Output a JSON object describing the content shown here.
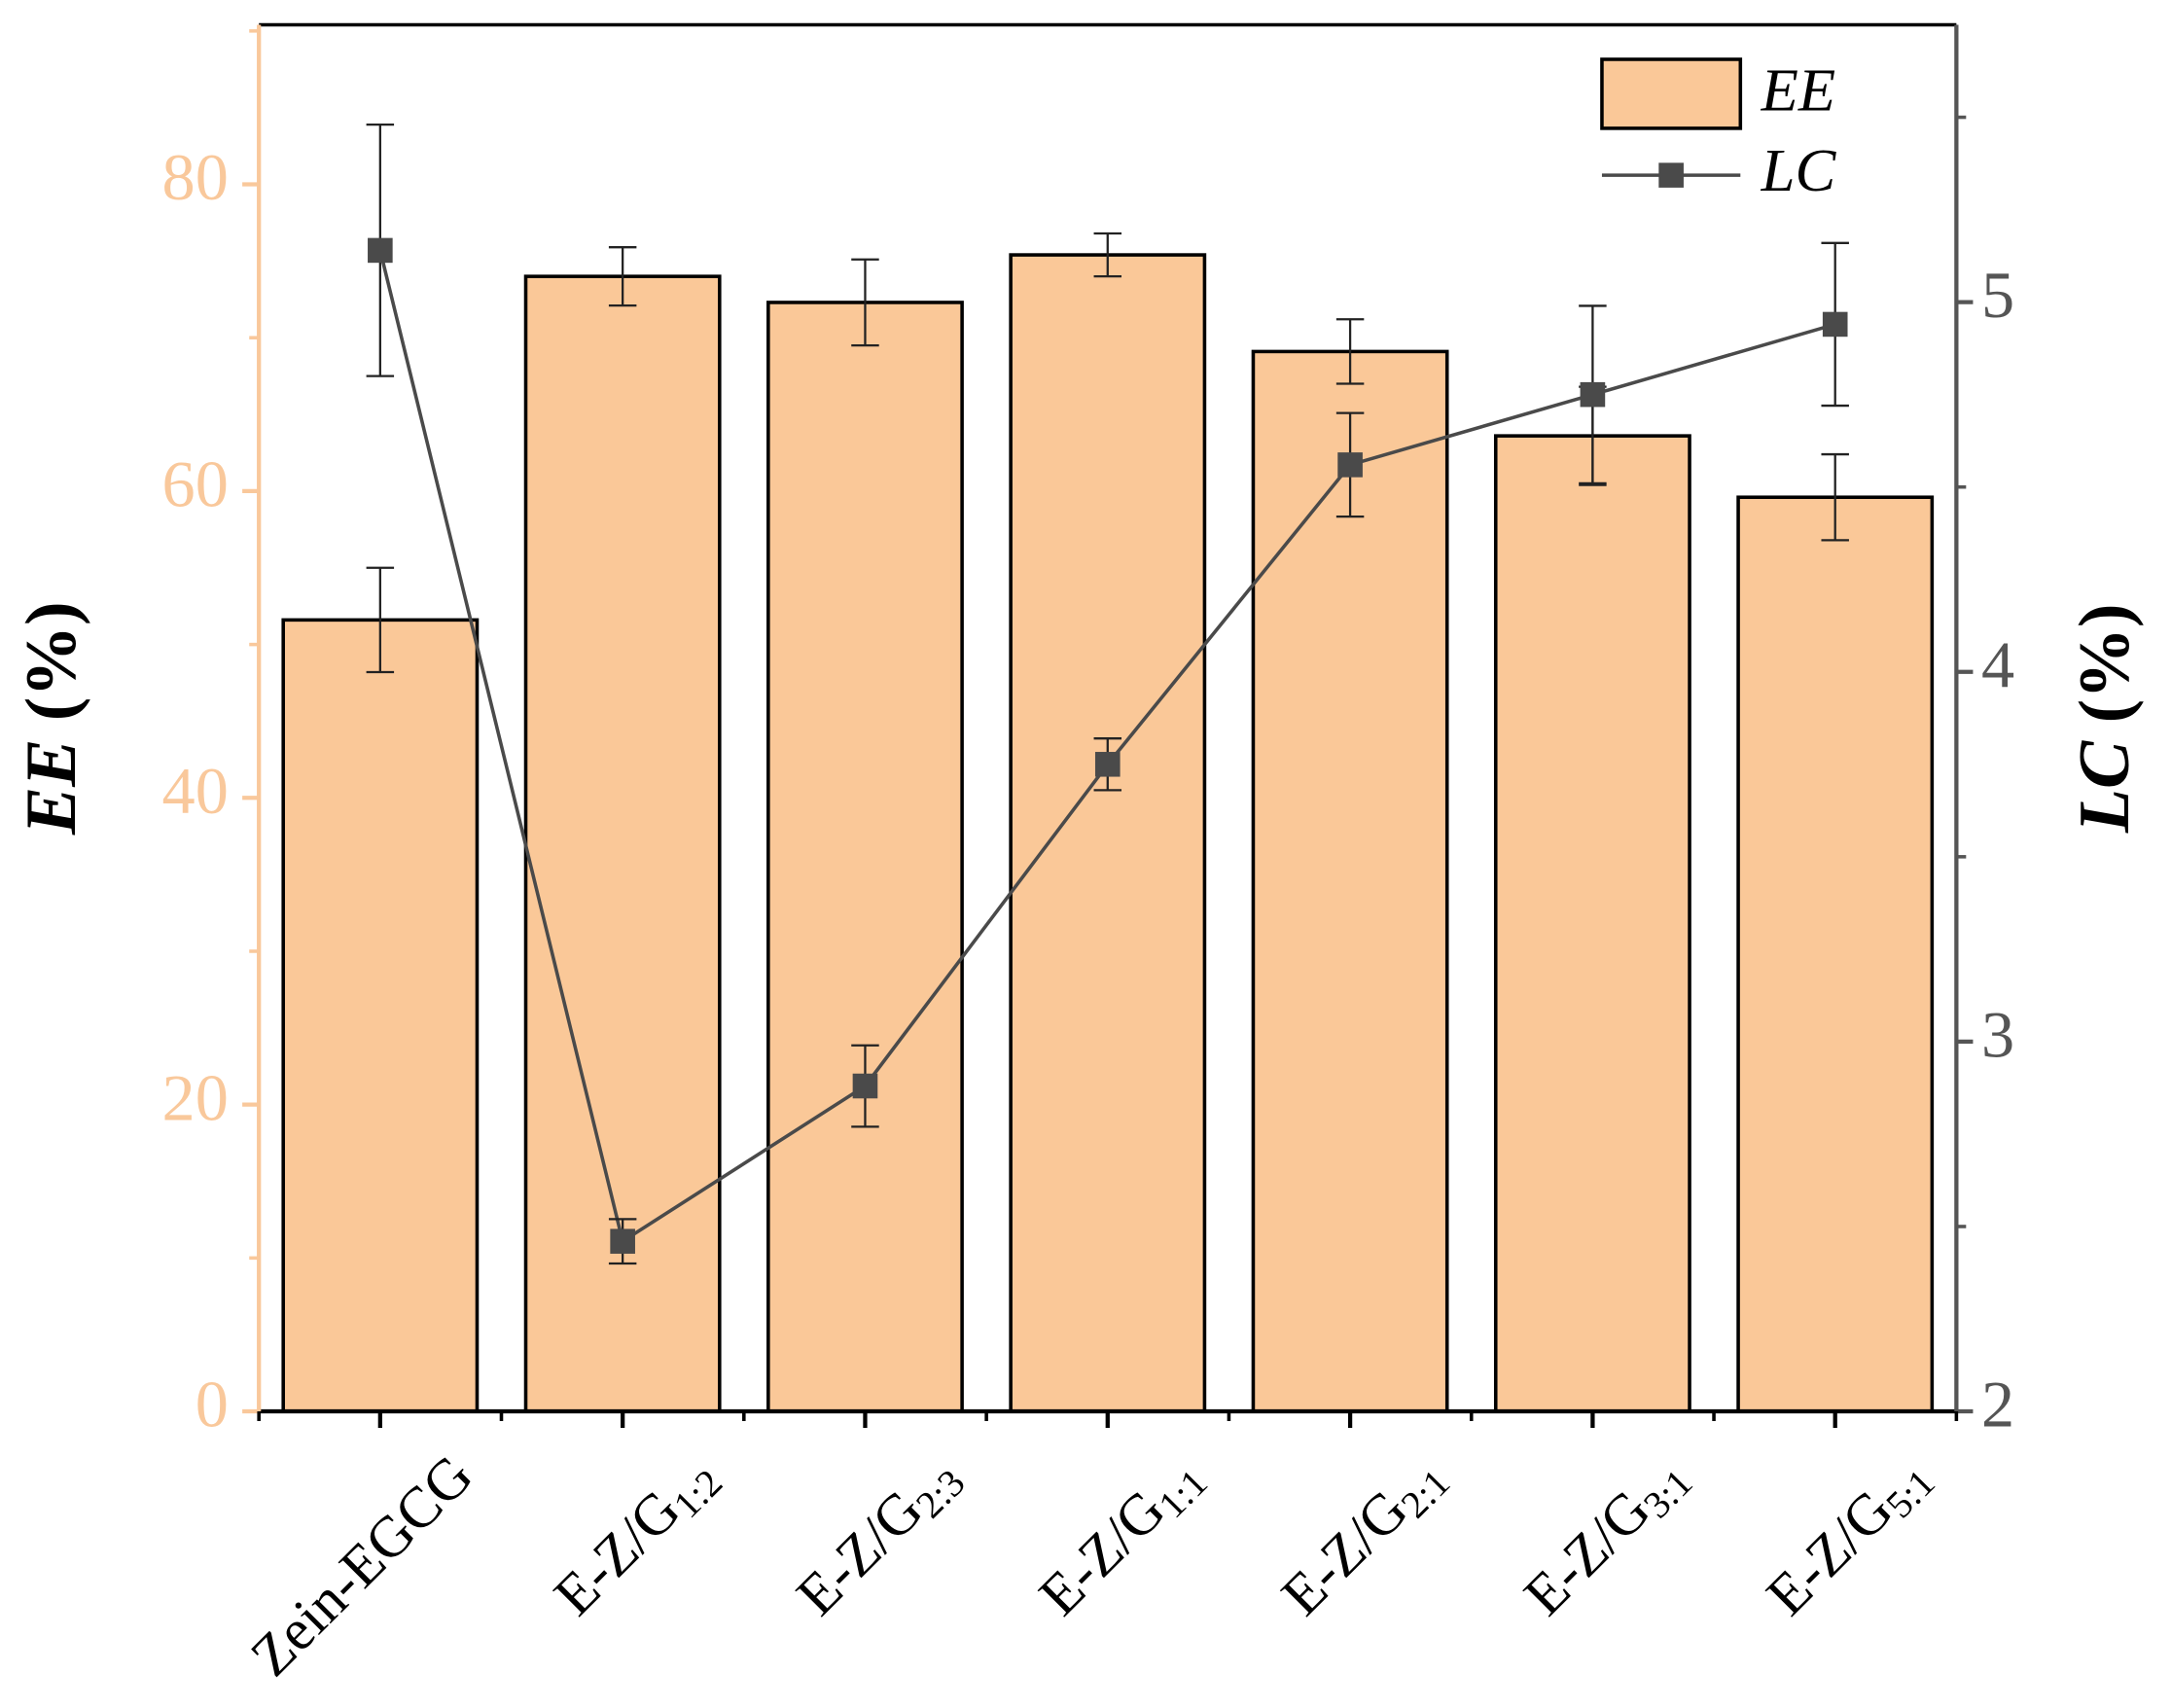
{
  "chart_data": {
    "type": "bar_line",
    "categories": [
      [
        "Zein-EGCG"
      ],
      [
        "E-Z/G",
        "1:2"
      ],
      [
        "E-Z/G",
        "2:3"
      ],
      [
        "E-Z/G",
        "1:1"
      ],
      [
        "E-Z/G",
        "2:1"
      ],
      [
        "E-Z/G",
        "3:1"
      ],
      [
        "E-Z/G",
        "5:1"
      ]
    ],
    "y_label": [
      "EE",
      " (%)"
    ],
    "y2_label": [
      "LC",
      " (%)"
    ],
    "series": [
      {
        "name": "EE",
        "type": "bar",
        "color": "#fac898",
        "axis_color": "#f9c89b",
        "values": [
          51.6,
          74.0,
          72.3,
          75.4,
          69.1,
          63.6,
          59.6
        ],
        "errors": [
          3.4,
          1.9,
          2.8,
          1.4,
          2.1,
          3.2,
          2.8
        ]
      },
      {
        "name": "LC",
        "type": "line",
        "axis": "y2",
        "color": "#4a4a4a",
        "axis_color": "#555555",
        "values": [
          5.14,
          2.46,
          2.88,
          3.75,
          4.56,
          4.75,
          4.94
        ],
        "errors": [
          0.34,
          0.06,
          0.11,
          0.07,
          0.14,
          0.24,
          0.22
        ]
      }
    ],
    "ylim": [
      0,
      90.4
    ],
    "yticks": [
      0,
      20,
      40,
      60,
      80
    ],
    "y2lim": [
      2,
      5.75
    ],
    "y2ticks": [
      2,
      3,
      4,
      5
    ],
    "legend": "upper right"
  }
}
